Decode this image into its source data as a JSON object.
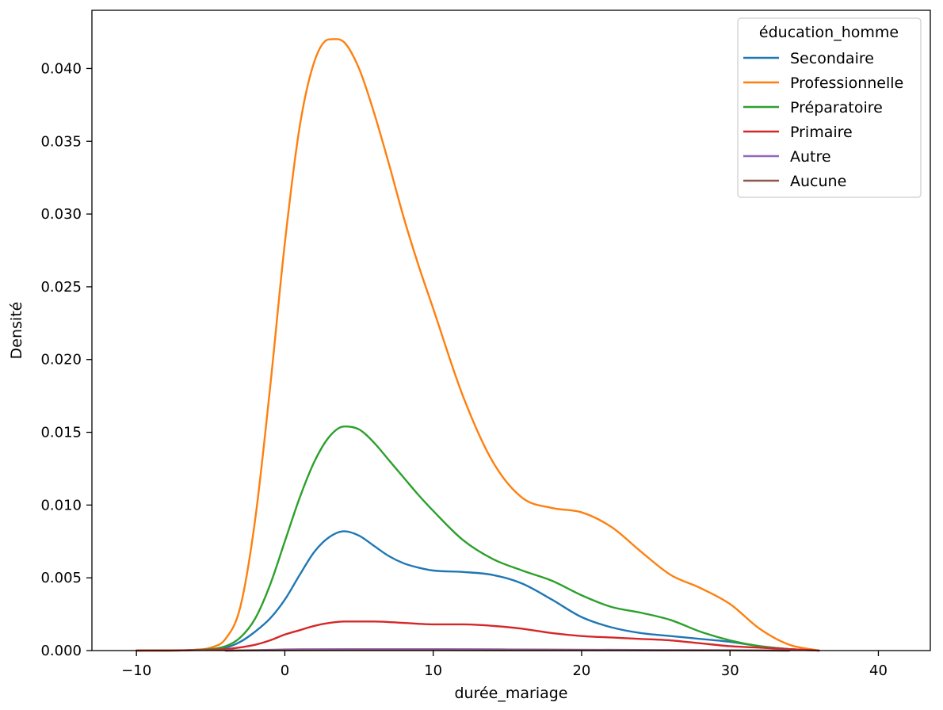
{
  "chart_data": {
    "type": "line",
    "xlabel": "durée_mariage",
    "ylabel": "Densité",
    "xlim": [
      -13,
      43.5
    ],
    "ylim": [
      0,
      0.044
    ],
    "xticks": [
      -10,
      0,
      10,
      20,
      30,
      40
    ],
    "xtick_labels": [
      "−10",
      "0",
      "10",
      "20",
      "30",
      "40"
    ],
    "yticks": [
      0,
      0.005,
      0.01,
      0.015,
      0.02,
      0.025,
      0.03,
      0.035,
      0.04
    ],
    "ytick_labels": [
      "0.000",
      "0.005",
      "0.010",
      "0.015",
      "0.020",
      "0.025",
      "0.030",
      "0.035",
      "0.040"
    ],
    "grid": false,
    "legend": {
      "title": "éducation_homme",
      "placement": "top-right"
    },
    "series": [
      {
        "name": "Secondaire",
        "color": "#1f77b4",
        "x": [
          -10,
          -6,
          -4,
          -3,
          -2,
          -1,
          0,
          1,
          2,
          3,
          4,
          5,
          6,
          7,
          8,
          9,
          10,
          12,
          14,
          16,
          18,
          20,
          22,
          24,
          26,
          28,
          30,
          32,
          34,
          36
        ],
        "y": [
          0,
          5e-05,
          0.0002,
          0.0006,
          0.0013,
          0.0022,
          0.0035,
          0.0052,
          0.0068,
          0.0078,
          0.0082,
          0.0079,
          0.0072,
          0.0065,
          0.006,
          0.0057,
          0.0055,
          0.0054,
          0.0052,
          0.0046,
          0.0035,
          0.0023,
          0.0016,
          0.0012,
          0.001,
          0.0008,
          0.0006,
          0.0003,
          0.0001,
          0
        ]
      },
      {
        "name": "Professionnelle",
        "color": "#ff7f0e",
        "x": [
          -10,
          -6,
          -5,
          -4,
          -3,
          -2,
          -1,
          0,
          1,
          2,
          3,
          4,
          5,
          6,
          7,
          8,
          9,
          10,
          12,
          14,
          16,
          18,
          20,
          22,
          24,
          26,
          28,
          30,
          32,
          34,
          36
        ],
        "y": [
          0,
          5e-05,
          0.0002,
          0.0008,
          0.003,
          0.009,
          0.018,
          0.028,
          0.036,
          0.0405,
          0.042,
          0.0418,
          0.04,
          0.037,
          0.0335,
          0.0298,
          0.0265,
          0.0235,
          0.0175,
          0.013,
          0.0105,
          0.0098,
          0.0095,
          0.0085,
          0.0068,
          0.0052,
          0.0043,
          0.0032,
          0.0015,
          0.0004,
          0
        ]
      },
      {
        "name": "Préparatoire",
        "color": "#2ca02c",
        "x": [
          -10,
          -6,
          -4,
          -3,
          -2,
          -1,
          0,
          1,
          2,
          3,
          4,
          5,
          6,
          7,
          8,
          9,
          10,
          12,
          14,
          16,
          18,
          20,
          22,
          24,
          26,
          28,
          30,
          32,
          34,
          36
        ],
        "y": [
          0,
          5e-05,
          0.0003,
          0.0009,
          0.0022,
          0.0045,
          0.0075,
          0.0105,
          0.013,
          0.0147,
          0.0154,
          0.0152,
          0.0143,
          0.0131,
          0.0119,
          0.0107,
          0.0096,
          0.0076,
          0.0063,
          0.0055,
          0.0048,
          0.0038,
          0.003,
          0.0026,
          0.0021,
          0.0013,
          0.0007,
          0.0003,
          0.0001,
          0
        ]
      },
      {
        "name": "Primaire",
        "color": "#d62728",
        "x": [
          -10,
          -6,
          -4,
          -2,
          -1,
          0,
          1,
          2,
          3,
          4,
          5,
          6,
          8,
          10,
          12,
          14,
          16,
          18,
          20,
          22,
          24,
          26,
          28,
          30,
          32,
          34,
          36
        ],
        "y": [
          0,
          3e-05,
          0.0001,
          0.0004,
          0.0007,
          0.0011,
          0.0014,
          0.0017,
          0.0019,
          0.002,
          0.002,
          0.002,
          0.0019,
          0.0018,
          0.0018,
          0.0017,
          0.0015,
          0.0012,
          0.001,
          0.0009,
          0.0008,
          0.0007,
          0.0005,
          0.0003,
          0.0002,
          0.0001,
          0
        ]
      },
      {
        "name": "Autre",
        "color": "#9467bd",
        "x": [
          -4,
          -2,
          0,
          5,
          10,
          15,
          20,
          25,
          30,
          34
        ],
        "y": [
          0,
          3e-05,
          8e-05,
          0.0001,
          0.0001,
          8e-05,
          6e-05,
          4e-05,
          2e-05,
          0
        ]
      },
      {
        "name": "Aucune",
        "color": "#8c564b",
        "x": [
          -4,
          0,
          5,
          10,
          15,
          20,
          25,
          30,
          34
        ],
        "y": [
          0,
          2e-05,
          3e-05,
          3e-05,
          2e-05,
          2e-05,
          1e-05,
          1e-05,
          0
        ]
      }
    ]
  }
}
